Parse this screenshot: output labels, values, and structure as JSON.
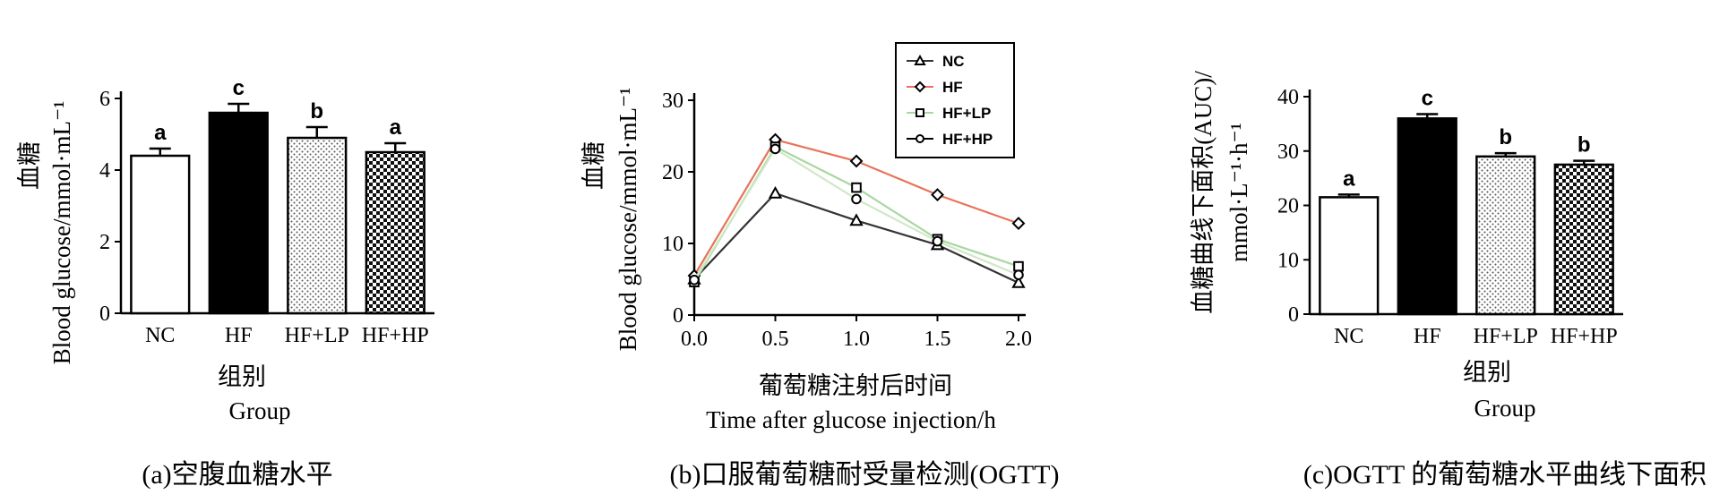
{
  "chart_data": [
    {
      "type": "bar",
      "caption": "(a)空腹血糖水平",
      "categories": [
        "NC",
        "HF",
        "HF+LP",
        "HF+HP"
      ],
      "values": [
        4.4,
        5.6,
        4.9,
        4.5
      ],
      "errors": [
        0.2,
        0.25,
        0.3,
        0.25
      ],
      "significance": [
        "a",
        "c",
        "b",
        "a"
      ],
      "fills": [
        "white",
        "black",
        "dots",
        "checker"
      ],
      "ylabel": "Blood glucose/mmol·mL⁻¹",
      "ylabel_cn": "血糖",
      "xlabel_cn": "组别",
      "xlabel": "Group",
      "ylim": [
        0,
        6
      ],
      "yticks": [
        "0",
        "2",
        "4",
        "6"
      ]
    },
    {
      "type": "line",
      "caption": "(b)口服葡萄糖耐受量检测(OGTT)",
      "x": [
        0.0,
        0.5,
        1.0,
        1.5,
        2.0
      ],
      "xticks": [
        "0.0",
        "0.5",
        "1.0",
        "1.5",
        "2.0"
      ],
      "series": [
        {
          "name": "NC",
          "marker": "triangle",
          "color": "#333333",
          "values": [
            5.0,
            17.0,
            13.2,
            9.8,
            4.5
          ]
        },
        {
          "name": "HF",
          "marker": "diamond",
          "color": "#e8735a",
          "values": [
            5.5,
            24.5,
            21.5,
            16.8,
            12.8
          ]
        },
        {
          "name": "HF+LP",
          "marker": "square",
          "color": "#a8d8a0",
          "values": [
            4.6,
            23.5,
            17.8,
            10.6,
            6.8
          ]
        },
        {
          "name": "HF+HP",
          "marker": "circle",
          "color": "#cfe8c8",
          "values": [
            4.9,
            23.2,
            16.2,
            10.3,
            5.6
          ]
        }
      ],
      "ylabel": "Blood glucose/mmol·mL⁻¹",
      "ylabel_cn": "血糖",
      "xlabel_cn": "葡萄糖注射后时间",
      "xlabel": "Time after glucose injection/h",
      "xlim": [
        0,
        2
      ],
      "ylim": [
        0,
        30
      ],
      "yticks": [
        "0",
        "10",
        "20",
        "30"
      ],
      "legend": "top-left"
    },
    {
      "type": "bar",
      "caption": "(c)OGTT 的葡萄糖水平曲线下面积",
      "categories": [
        "NC",
        "HF",
        "HF+LP",
        "HF+HP"
      ],
      "values": [
        21.5,
        36.0,
        29.0,
        27.5
      ],
      "errors": [
        0.5,
        0.8,
        0.6,
        0.7
      ],
      "significance": [
        "a",
        "c",
        "b",
        "b"
      ],
      "fills": [
        "white",
        "black",
        "dots",
        "checker"
      ],
      "ylabel_line1": "血糖曲线下面积(AUC)/",
      "ylabel_line2": "mmol·L⁻¹·h⁻¹",
      "xlabel_cn": "组别",
      "xlabel": "Group",
      "ylim": [
        0,
        40
      ],
      "yticks": [
        "0",
        "10",
        "20",
        "30",
        "40"
      ]
    }
  ]
}
